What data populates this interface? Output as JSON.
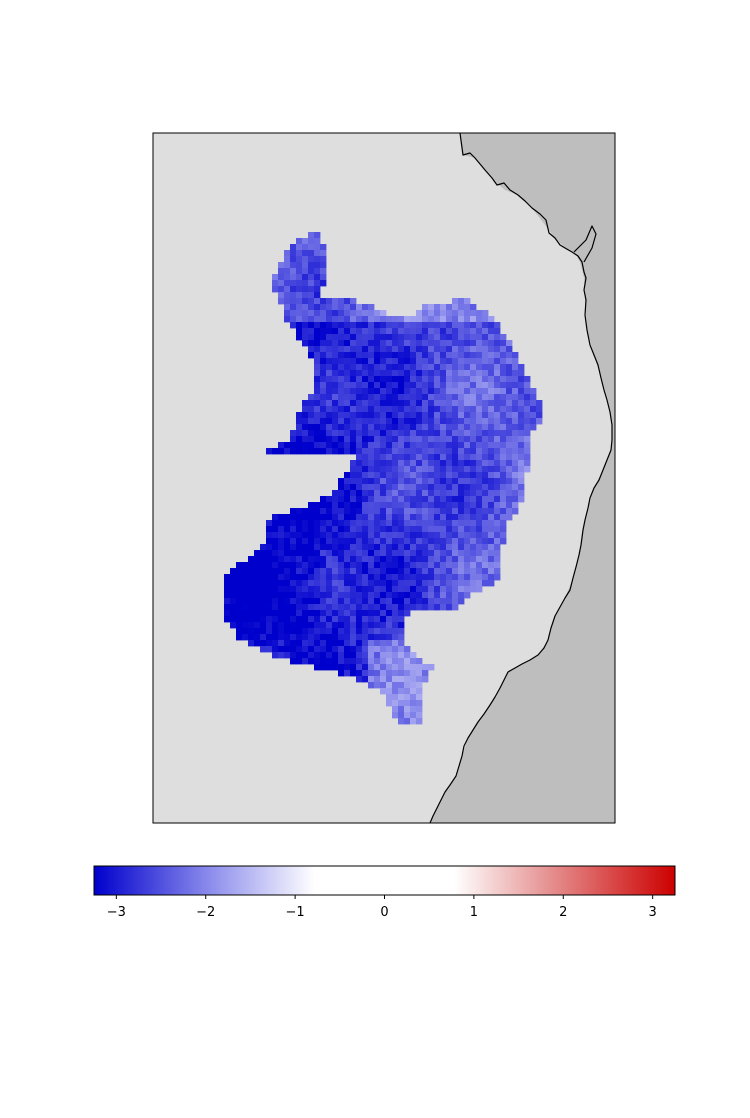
{
  "map": {
    "land_color": "#bebebe",
    "sea_color": "#dedede",
    "coastline_color": "#000000"
  },
  "chart_data": {
    "type": "heatmap",
    "title": "",
    "colormap": "seismic",
    "vmin": -3.25,
    "vmax": 3.25,
    "colorbar": {
      "orientation": "horizontal",
      "placement": "bottom",
      "ticks": [
        {
          "value": -3,
          "label": "−3"
        },
        {
          "value": -2,
          "label": "−2"
        },
        {
          "value": -1,
          "label": "−1"
        },
        {
          "value": 0,
          "label": "0"
        },
        {
          "value": 1,
          "label": "1"
        },
        {
          "value": 2,
          "label": "2"
        },
        {
          "value": 3,
          "label": "3"
        }
      ],
      "colors": {
        "min": "#0000cd",
        "low_mid": "#9a9aef",
        "neutral": "#ffffff",
        "high_mid": "#e69393",
        "max": "#cd0000"
      }
    },
    "data_summary": {
      "range_shown": [
        -3.25,
        -1.0
      ],
      "dominant_value": -3.0
    }
  }
}
